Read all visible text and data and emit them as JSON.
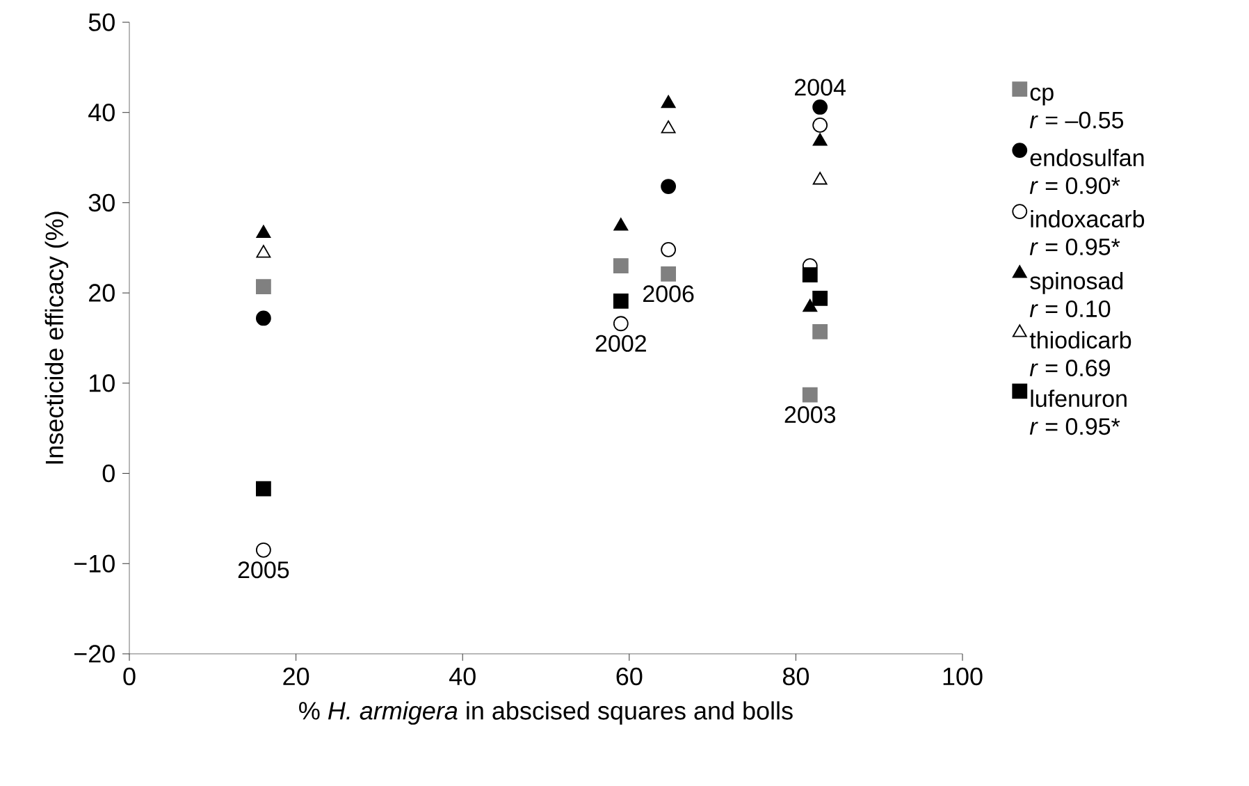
{
  "chart_data": {
    "type": "scatter",
    "xlabel": "% *H. armigera* in abscised squares and bolls",
    "ylabel": "Insecticide efficacy (%)",
    "x": [
      16.1,
      59.0,
      64.7,
      81.7,
      82.9
    ],
    "series": [
      {
        "name": "cp *r* = –0.55",
        "color": "#808080",
        "marker": "square",
        "values": [
          20.7,
          23.0,
          22.1,
          8.7,
          15.7
        ]
      },
      {
        "name": "endosulfan *r* = 0.90*",
        "color": "#000000",
        "marker": "circle",
        "values": [
          17.2,
          null,
          31.8,
          null,
          40.6
        ]
      },
      {
        "name": "indoxacarb *r* = 0.95*",
        "color": "#ffffff",
        "marker": "circle",
        "values": [
          -8.5,
          16.6,
          24.8,
          23.0,
          38.6
        ]
      },
      {
        "name": "spinosad *r* = 0.10",
        "color": "#000000",
        "marker": "triangle",
        "values": [
          26.6,
          27.4,
          41.0,
          18.4,
          36.8
        ]
      },
      {
        "name": "thiodicarb *r* = 0.69",
        "color": "#ffffff",
        "marker": "triangle",
        "values": [
          24.4,
          null,
          38.2,
          null,
          32.5
        ]
      },
      {
        "name": "lufenuron *r* = 0.95*",
        "color": "#000000",
        "marker": "square",
        "values": [
          -1.7,
          19.1,
          null,
          22.0,
          19.4
        ]
      }
    ],
    "annotations": [
      {
        "text": "2005",
        "x": 16.1,
        "y": -8.5
      },
      {
        "text": "2002",
        "x": 59.0,
        "y": 16.6
      },
      {
        "text": "2006",
        "x": 64.7,
        "y": 22.1
      },
      {
        "text": "2003",
        "x": 81.7,
        "y": 8.7
      },
      {
        "text": "2004",
        "x": 82.9,
        "y": 40.6
      }
    ],
    "xlim": [
      0,
      100
    ],
    "xticks": [
      0,
      20,
      40,
      60,
      80,
      100
    ],
    "ylim": [
      -20,
      50
    ],
    "yticks": [
      {
        "value": -20,
        "label": "−20"
      },
      {
        "value": -10,
        "label": "−10"
      },
      0,
      10,
      20,
      30,
      40,
      50
    ],
    "legend": "right",
    "grid": false
  }
}
